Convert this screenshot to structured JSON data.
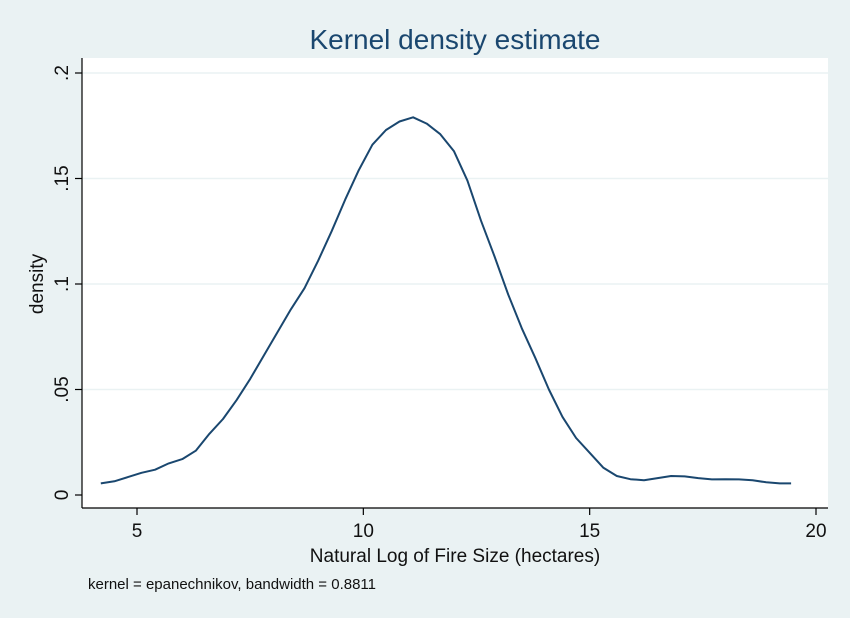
{
  "chart_data": {
    "type": "line",
    "title": "Kernel density estimate",
    "xlabel": "Natural Log of Fire Size (hectares)",
    "ylabel": "density",
    "note": "kernel = epanechnikov, bandwidth = 0.8811",
    "xlim": [
      4,
      20
    ],
    "ylim": [
      0,
      0.2
    ],
    "x_ticks": [
      {
        "value": 5,
        "label": "5"
      },
      {
        "value": 10,
        "label": "10"
      },
      {
        "value": 15,
        "label": "15"
      },
      {
        "value": 20,
        "label": "20"
      }
    ],
    "y_ticks": [
      {
        "value": 0,
        "label": "0"
      },
      {
        "value": 0.05,
        "label": ".05"
      },
      {
        "value": 0.1,
        "label": ".1"
      },
      {
        "value": 0.15,
        "label": ".15"
      },
      {
        "value": 0.2,
        "label": ".2"
      }
    ],
    "grid": true,
    "series": [
      {
        "color": "#1a476f",
        "x": [
          4.2,
          4.5,
          4.8,
          5.1,
          5.4,
          5.7,
          6.0,
          6.3,
          6.6,
          6.9,
          7.2,
          7.5,
          7.8,
          8.1,
          8.4,
          8.7,
          9.0,
          9.3,
          9.6,
          9.9,
          10.2,
          10.5,
          10.8,
          11.1,
          11.4,
          11.7,
          12.0,
          12.3,
          12.6,
          12.9,
          13.2,
          13.5,
          13.8,
          14.1,
          14.4,
          14.7,
          15.0,
          15.3,
          15.6,
          15.9,
          16.2,
          16.5,
          16.8,
          17.1,
          17.4,
          17.7,
          18.0,
          18.3,
          18.6,
          18.9,
          19.2,
          19.45
        ],
        "y": [
          0.0055,
          0.0065,
          0.0085,
          0.0105,
          0.012,
          0.015,
          0.017,
          0.021,
          0.029,
          0.036,
          0.045,
          0.055,
          0.066,
          0.077,
          0.088,
          0.098,
          0.111,
          0.125,
          0.14,
          0.154,
          0.166,
          0.173,
          0.177,
          0.179,
          0.176,
          0.171,
          0.163,
          0.149,
          0.13,
          0.113,
          0.095,
          0.079,
          0.065,
          0.05,
          0.037,
          0.027,
          0.02,
          0.013,
          0.009,
          0.0075,
          0.007,
          0.008,
          0.009,
          0.0088,
          0.008,
          0.0074,
          0.0075,
          0.0074,
          0.007,
          0.006,
          0.0055,
          0.0055
        ]
      }
    ]
  }
}
